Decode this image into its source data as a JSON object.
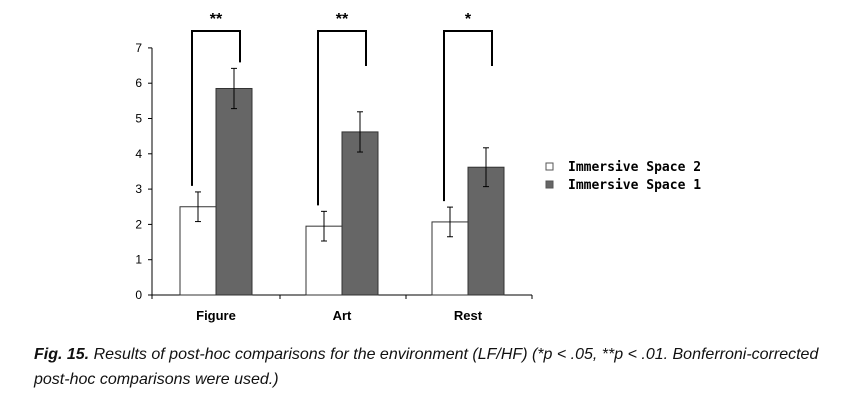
{
  "chart_data": {
    "type": "bar",
    "categories": [
      "Figure",
      "Art",
      "Rest"
    ],
    "series": [
      {
        "name": "Immersive Space 2",
        "values": [
          2.5,
          1.95,
          2.07
        ],
        "errors": [
          0.42,
          0.42,
          0.42
        ],
        "color": "#ffffff"
      },
      {
        "name": "Immersive Space 1",
        "values": [
          5.85,
          4.62,
          3.62
        ],
        "errors": [
          0.57,
          0.57,
          0.55
        ],
        "color": "#666666"
      }
    ],
    "yticks": [
      "0",
      "1",
      "2",
      "3",
      "4",
      "5",
      "6",
      "7"
    ],
    "ylim": [
      0,
      7
    ],
    "significance": [
      "**",
      "**",
      "*"
    ],
    "legend_position": "right",
    "xlabel": "",
    "ylabel": ""
  },
  "caption": {
    "label": "Fig. 15.",
    "text": "Results of post-hoc comparisons for the environment (LF/HF) (*p < .05, **p < .01. Bonferroni-corrected post-hoc comparisons were used.)"
  }
}
